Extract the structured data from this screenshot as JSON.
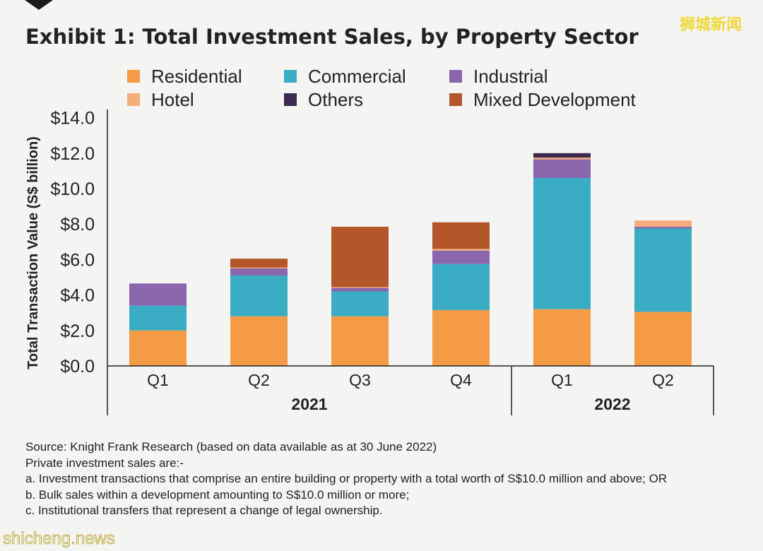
{
  "watermark_top": "狮城新闻",
  "watermark_bottom": "shicheng.news",
  "chart_data": {
    "type": "bar",
    "stacked": true,
    "title": "Exhibit 1: Total Investment Sales, by Property Sector",
    "ylabel": "Total Transaction Value (S$ billion)",
    "ylim": [
      0,
      14
    ],
    "yticks": [
      "$0.0",
      "$2.0",
      "$4.0",
      "$6.0",
      "$8.0",
      "$10.0",
      "$12.0",
      "$14.0"
    ],
    "grid": false,
    "legend_position": "top",
    "categories": [
      "Q1",
      "Q2",
      "Q3",
      "Q4",
      "Q1",
      "Q2"
    ],
    "groups": [
      {
        "label": "2021",
        "span": 4
      },
      {
        "label": "2022",
        "span": 2
      }
    ],
    "series": [
      {
        "name": "Residential",
        "color": "#f59a45",
        "values": [
          2.0,
          2.8,
          2.8,
          3.15,
          3.2,
          3.05
        ]
      },
      {
        "name": "Commercial",
        "color": "#3aacc4",
        "values": [
          1.4,
          2.3,
          1.4,
          2.6,
          7.4,
          4.7
        ]
      },
      {
        "name": "Industrial",
        "color": "#8a66ac",
        "values": [
          1.25,
          0.4,
          0.2,
          0.75,
          1.05,
          0.1
        ]
      },
      {
        "name": "Hotel",
        "color": "#f5ad7c",
        "values": [
          0,
          0.05,
          0.05,
          0.1,
          0.1,
          0.35
        ]
      },
      {
        "name": "Others",
        "color": "#3d2b4f",
        "values": [
          0,
          0,
          0,
          0,
          0.25,
          0
        ]
      },
      {
        "name": "Mixed Development",
        "color": "#b3562a",
        "values": [
          0,
          0.5,
          3.4,
          1.5,
          0,
          0
        ]
      }
    ]
  },
  "notes": {
    "source": "Source: Knight Frank Research (based on data available as at 30 June 2022)",
    "intro": "Private investment sales are:-",
    "items": [
      "a.  Investment transactions that comprise an entire building or property with a total worth of S$10.0 million and above; OR",
      "b.  Bulk sales within a development amounting to S$10.0 million or more;",
      "c.  Institutional transfers that represent a change of legal ownership."
    ]
  }
}
